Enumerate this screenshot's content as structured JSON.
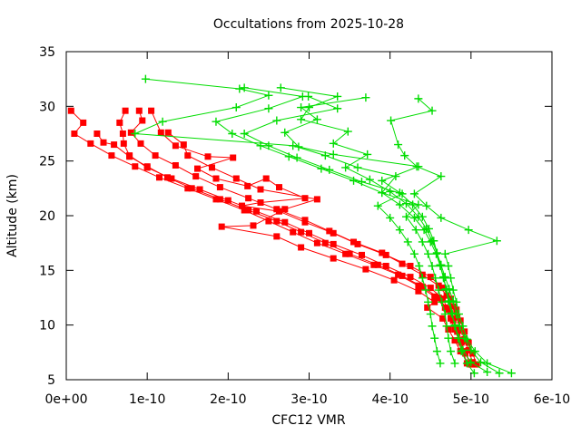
{
  "chart_data": {
    "type": "line",
    "title": "Occultations from 2025-10-28",
    "xlabel": "CFC12 VMR",
    "ylabel": "Altitude (km)",
    "x_value_unit": "1e-10",
    "xlim": [
      0,
      6
    ],
    "ylim": [
      5,
      35
    ],
    "x_tick_labels": [
      "0e+00",
      "1e-10",
      "2e-10",
      "3e-10",
      "4e-10",
      "5e-10",
      "6e-10"
    ],
    "y_tick_labels": [
      "5",
      "10",
      "15",
      "20",
      "25",
      "30",
      "35"
    ],
    "grid": false,
    "legend": "none",
    "colors": {
      "red_profiles": "#ff0000",
      "green_profiles": "#00dd00",
      "axis": "#000000"
    },
    "markers": {
      "red_profiles": "filled-square",
      "green_profiles": "plus"
    },
    "point_format": [
      "vmr_1e-10",
      "altitude_km"
    ],
    "series": [
      {
        "name": "red-profile-1",
        "group": "red_profiles",
        "points": [
          [
            4.95,
            6.5
          ],
          [
            4.9,
            7.6
          ],
          [
            4.85,
            8.6
          ],
          [
            4.8,
            9.6
          ],
          [
            4.75,
            10.6
          ],
          [
            4.68,
            11.6
          ],
          [
            4.55,
            12.6
          ],
          [
            4.35,
            13.6
          ],
          [
            4.1,
            14.6
          ],
          [
            3.8,
            15.5
          ],
          [
            3.45,
            16.5
          ],
          [
            3.1,
            17.5
          ],
          [
            2.8,
            18.5
          ],
          [
            2.5,
            19.5
          ],
          [
            2.2,
            20.5
          ],
          [
            1.85,
            21.5
          ],
          [
            1.5,
            22.5
          ],
          [
            1.15,
            23.5
          ],
          [
            0.85,
            24.5
          ],
          [
            0.56,
            25.5
          ],
          [
            0.3,
            26.6
          ],
          [
            0.1,
            27.5
          ],
          [
            0.21,
            28.5
          ],
          [
            0.06,
            29.6
          ]
        ]
      },
      {
        "name": "red-profile-2",
        "group": "red_profiles",
        "points": [
          [
            5.0,
            6.4
          ],
          [
            4.93,
            7.4
          ],
          [
            4.88,
            8.4
          ],
          [
            4.83,
            9.4
          ],
          [
            4.78,
            10.4
          ],
          [
            4.72,
            11.4
          ],
          [
            4.65,
            12.4
          ],
          [
            4.5,
            13.4
          ],
          [
            4.25,
            14.4
          ],
          [
            3.95,
            15.4
          ],
          [
            3.65,
            16.4
          ],
          [
            3.3,
            17.4
          ],
          [
            3.0,
            18.4
          ],
          [
            2.7,
            19.4
          ],
          [
            2.35,
            20.4
          ],
          [
            2.0,
            21.4
          ],
          [
            1.65,
            22.4
          ],
          [
            1.3,
            23.4
          ],
          [
            1.0,
            24.4
          ],
          [
            0.78,
            25.5
          ],
          [
            0.71,
            26.6
          ],
          [
            0.7,
            27.5
          ],
          [
            0.66,
            28.5
          ],
          [
            0.73,
            29.6
          ]
        ]
      },
      {
        "name": "red-profile-3",
        "group": "red_profiles",
        "points": [
          [
            5.02,
            6.6
          ],
          [
            4.97,
            7.7
          ],
          [
            4.92,
            8.7
          ],
          [
            4.87,
            9.7
          ],
          [
            4.83,
            10.7
          ],
          [
            4.78,
            11.7
          ],
          [
            4.7,
            12.7
          ],
          [
            4.6,
            13.6
          ],
          [
            4.4,
            14.6
          ],
          [
            4.15,
            15.6
          ],
          [
            3.9,
            16.6
          ],
          [
            3.55,
            17.6
          ],
          [
            3.25,
            18.6
          ],
          [
            2.95,
            19.6
          ],
          [
            2.6,
            20.6
          ],
          [
            2.25,
            21.6
          ],
          [
            1.9,
            22.6
          ],
          [
            1.6,
            23.6
          ],
          [
            1.35,
            24.6
          ],
          [
            1.1,
            25.5
          ],
          [
            0.92,
            26.6
          ],
          [
            0.8,
            27.6
          ],
          [
            0.94,
            28.7
          ],
          [
            0.9,
            29.6
          ]
        ]
      },
      {
        "name": "red-profile-4",
        "group": "red_profiles",
        "points": [
          [
            5.07,
            6.4
          ],
          [
            5.02,
            7.4
          ],
          [
            4.97,
            8.4
          ],
          [
            4.92,
            9.4
          ],
          [
            4.87,
            10.4
          ],
          [
            4.82,
            11.4
          ],
          [
            4.75,
            12.4
          ],
          [
            4.65,
            13.4
          ],
          [
            4.5,
            14.4
          ],
          [
            4.25,
            15.4
          ],
          [
            3.95,
            16.4
          ],
          [
            3.6,
            17.4
          ],
          [
            3.3,
            18.4
          ],
          [
            2.95,
            19.4
          ],
          [
            2.63,
            20.4
          ],
          [
            2.17,
            20.9
          ],
          [
            2.4,
            21.2
          ],
          [
            2.95,
            21.6
          ],
          [
            2.63,
            22.6
          ],
          [
            2.47,
            23.4
          ],
          [
            2.24,
            22.7
          ],
          [
            1.85,
            23.4
          ],
          [
            1.62,
            24.3
          ],
          [
            2.06,
            25.3
          ],
          [
            1.75,
            25.4
          ],
          [
            1.35,
            26.4
          ],
          [
            1.17,
            27.6
          ],
          [
            1.05,
            29.6
          ]
        ]
      },
      {
        "name": "red-profile-5",
        "group": "red_profiles",
        "points": [
          [
            4.89,
            8.5
          ],
          [
            4.84,
            9.5
          ],
          [
            4.78,
            10.5
          ],
          [
            4.7,
            11.5
          ],
          [
            4.6,
            12.5
          ],
          [
            4.4,
            13.5
          ],
          [
            4.15,
            14.5
          ],
          [
            3.85,
            15.5
          ],
          [
            3.5,
            16.5
          ],
          [
            3.2,
            17.5
          ],
          [
            2.9,
            18.5
          ],
          [
            2.6,
            19.5
          ],
          [
            2.25,
            20.5
          ],
          [
            1.9,
            21.5
          ],
          [
            1.55,
            22.5
          ],
          [
            1.25,
            23.5
          ],
          [
            1.0,
            24.5
          ],
          [
            0.78,
            25.4
          ],
          [
            0.59,
            26.5
          ],
          [
            0.46,
            26.7
          ],
          [
            0.38,
            27.5
          ]
        ]
      },
      {
        "name": "red-profile-6",
        "group": "red_profiles",
        "points": [
          [
            4.87,
            7.6
          ],
          [
            4.8,
            8.6
          ],
          [
            4.72,
            9.6
          ],
          [
            4.65,
            10.6
          ],
          [
            4.46,
            11.6
          ],
          [
            4.55,
            12.1
          ],
          [
            4.35,
            13.1
          ],
          [
            4.05,
            14.1
          ],
          [
            3.7,
            15.1
          ],
          [
            3.3,
            16.1
          ],
          [
            2.9,
            17.1
          ],
          [
            2.6,
            18.1
          ],
          [
            1.92,
            19.0
          ],
          [
            2.31,
            19.1
          ],
          [
            2.7,
            20.6
          ],
          [
            3.1,
            21.5
          ],
          [
            2.4,
            22.4
          ],
          [
            2.1,
            23.4
          ],
          [
            1.8,
            24.4
          ],
          [
            1.5,
            25.5
          ],
          [
            1.45,
            26.5
          ],
          [
            1.26,
            27.6
          ]
        ]
      },
      {
        "name": "green-profile-1",
        "group": "green_profiles",
        "points": [
          [
            5.5,
            5.6
          ],
          [
            5.2,
            6.5
          ],
          [
            5.05,
            7.6
          ],
          [
            4.95,
            8.7
          ],
          [
            4.9,
            9.9
          ],
          [
            4.85,
            11.0
          ],
          [
            4.82,
            12.1
          ],
          [
            4.78,
            13.2
          ],
          [
            4.75,
            14.3
          ],
          [
            4.72,
            15.4
          ],
          [
            4.68,
            16.5
          ],
          [
            5.32,
            17.7
          ],
          [
            4.97,
            18.7
          ],
          [
            4.63,
            19.8
          ],
          [
            4.45,
            20.9
          ],
          [
            4.3,
            22.0
          ],
          [
            4.63,
            23.6
          ],
          [
            4.33,
            24.5
          ],
          [
            4.18,
            25.5
          ],
          [
            4.1,
            26.5
          ],
          [
            4.01,
            28.7
          ],
          [
            4.52,
            29.6
          ],
          [
            4.35,
            30.7
          ]
        ]
      },
      {
        "name": "green-profile-2",
        "group": "green_profiles",
        "points": [
          [
            5.04,
            5.6
          ],
          [
            4.95,
            6.5
          ],
          [
            4.88,
            7.6
          ],
          [
            4.84,
            8.8
          ],
          [
            4.8,
            9.9
          ],
          [
            4.77,
            11.0
          ],
          [
            4.74,
            12.1
          ],
          [
            4.7,
            13.2
          ],
          [
            4.66,
            14.3
          ],
          [
            4.62,
            15.4
          ],
          [
            4.57,
            16.5
          ],
          [
            4.5,
            17.6
          ],
          [
            4.42,
            18.7
          ],
          [
            4.3,
            19.8
          ],
          [
            4.12,
            21.0
          ],
          [
            3.9,
            22.1
          ],
          [
            4.07,
            23.6
          ],
          [
            3.6,
            24.4
          ],
          [
            3.2,
            25.5
          ],
          [
            2.8,
            26.4
          ],
          [
            0.85,
            27.5
          ],
          [
            1.19,
            28.6
          ],
          [
            2.1,
            29.9
          ],
          [
            2.5,
            31.0
          ],
          [
            2.14,
            31.6
          ],
          [
            0.98,
            32.5
          ]
        ]
      },
      {
        "name": "green-profile-3",
        "group": "green_profiles",
        "points": [
          [
            5.35,
            5.6
          ],
          [
            5.12,
            6.6
          ],
          [
            5.0,
            7.7
          ],
          [
            4.92,
            8.8
          ],
          [
            4.86,
            9.9
          ],
          [
            4.82,
            11.0
          ],
          [
            4.78,
            12.2
          ],
          [
            4.73,
            13.3
          ],
          [
            4.68,
            14.4
          ],
          [
            4.63,
            15.5
          ],
          [
            4.58,
            16.6
          ],
          [
            4.52,
            17.7
          ],
          [
            4.45,
            18.8
          ],
          [
            4.35,
            19.9
          ],
          [
            4.2,
            21.1
          ],
          [
            4.0,
            22.2
          ],
          [
            3.75,
            23.3
          ],
          [
            3.45,
            24.4
          ],
          [
            3.72,
            25.6
          ],
          [
            3.3,
            26.6
          ],
          [
            3.48,
            27.7
          ],
          [
            2.9,
            28.8
          ],
          [
            3.0,
            29.9
          ],
          [
            3.35,
            30.9
          ],
          [
            2.65,
            31.7
          ]
        ]
      },
      {
        "name": "green-profile-4",
        "group": "green_profiles",
        "points": [
          [
            4.8,
            6.5
          ],
          [
            4.75,
            7.6
          ],
          [
            4.72,
            8.8
          ],
          [
            4.7,
            9.9
          ],
          [
            4.68,
            11.0
          ],
          [
            4.64,
            12.1
          ],
          [
            4.6,
            13.2
          ],
          [
            4.56,
            14.3
          ],
          [
            4.52,
            15.4
          ],
          [
            4.47,
            16.5
          ],
          [
            4.4,
            17.6
          ],
          [
            4.32,
            18.7
          ],
          [
            4.2,
            19.9
          ],
          [
            4.35,
            21.0
          ],
          [
            3.9,
            22.1
          ],
          [
            3.55,
            23.2
          ],
          [
            3.15,
            24.3
          ],
          [
            2.75,
            25.4
          ],
          [
            2.4,
            26.4
          ],
          [
            2.05,
            27.5
          ],
          [
            1.85,
            28.6
          ],
          [
            2.5,
            29.8
          ],
          [
            2.92,
            30.9
          ],
          [
            2.2,
            31.7
          ]
        ]
      },
      {
        "name": "green-profile-5",
        "group": "green_profiles",
        "points": [
          [
            5.2,
            5.7
          ],
          [
            5.0,
            6.6
          ],
          [
            4.9,
            7.7
          ],
          [
            4.85,
            8.8
          ],
          [
            4.8,
            10.0
          ],
          [
            4.76,
            11.1
          ],
          [
            4.72,
            12.2
          ],
          [
            4.69,
            13.3
          ],
          [
            4.66,
            14.4
          ],
          [
            4.62,
            15.5
          ],
          [
            4.58,
            16.6
          ],
          [
            4.54,
            17.7
          ],
          [
            4.48,
            18.8
          ],
          [
            4.4,
            19.9
          ],
          [
            4.28,
            21.0
          ],
          [
            4.12,
            22.1
          ],
          [
            3.9,
            23.2
          ],
          [
            4.35,
            24.5
          ],
          [
            3.3,
            25.6
          ],
          [
            2.87,
            26.3
          ],
          [
            2.7,
            27.6
          ],
          [
            3.1,
            28.8
          ],
          [
            2.9,
            29.9
          ],
          [
            3.7,
            30.8
          ]
        ]
      },
      {
        "name": "green-profile-6",
        "group": "green_profiles",
        "points": [
          [
            4.62,
            6.5
          ],
          [
            4.58,
            7.6
          ],
          [
            4.55,
            8.8
          ],
          [
            4.52,
            9.9
          ],
          [
            4.5,
            11.0
          ],
          [
            4.47,
            12.1
          ],
          [
            4.44,
            13.2
          ],
          [
            4.4,
            14.3
          ],
          [
            4.36,
            15.4
          ],
          [
            4.3,
            16.5
          ],
          [
            4.22,
            17.6
          ],
          [
            4.12,
            18.7
          ],
          [
            4.0,
            19.8
          ],
          [
            3.85,
            20.9
          ],
          [
            4.15,
            22.0
          ],
          [
            3.65,
            23.1
          ],
          [
            3.25,
            24.2
          ],
          [
            2.85,
            25.3
          ],
          [
            2.5,
            26.4
          ],
          [
            2.2,
            27.5
          ],
          [
            2.6,
            28.7
          ],
          [
            3.35,
            29.8
          ],
          [
            2.99,
            30.9
          ]
        ]
      }
    ]
  }
}
